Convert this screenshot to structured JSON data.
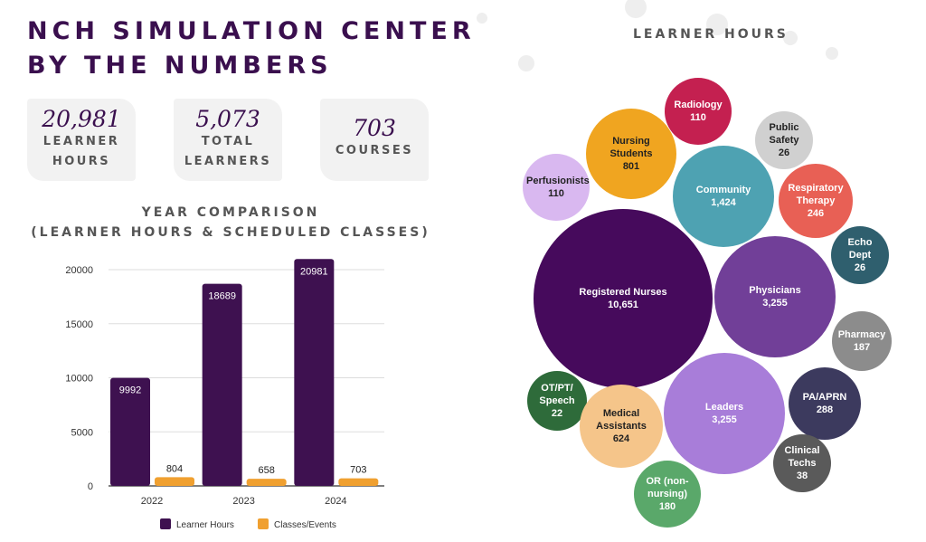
{
  "header": {
    "line1": "NCH SIMULATION CENTER",
    "line2": "BY THE NUMBERS"
  },
  "stats": [
    {
      "value": "20,981",
      "label1": "LEARNER",
      "label2": "HOURS"
    },
    {
      "value": "5,073",
      "label1": "TOTAL",
      "label2": "LEARNERS"
    },
    {
      "value": "703",
      "label1": "COURSES",
      "label2": ""
    }
  ],
  "chart_data": [
    {
      "type": "bar",
      "title": "YEAR COMPARISON",
      "subtitle": "(LEARNER HOURS & SCHEDULED CLASSES)",
      "categories": [
        "2022",
        "2023",
        "2024"
      ],
      "series": [
        {
          "name": "Learner Hours",
          "values": [
            9992,
            18689,
            20981
          ],
          "color": "#3e1150"
        },
        {
          "name": "Classes/Events",
          "values": [
            804,
            658,
            703
          ],
          "color": "#f0a030"
        }
      ],
      "ylim": [
        0,
        20000
      ],
      "yticks": [
        "0",
        "5000",
        "10000",
        "15000",
        "20000"
      ],
      "grid": true,
      "legend": "bottom"
    },
    {
      "type": "bubble",
      "title": "LEARNER HOURS",
      "items": [
        {
          "label": "Radiology",
          "value": "110",
          "color": "#c42050"
        },
        {
          "label": "Public Safety",
          "value": "26",
          "color": "#d0d0d0"
        },
        {
          "label": "Nursing Students",
          "value": "801",
          "color": "#f0a520"
        },
        {
          "label": "Perfusionists",
          "value": "110",
          "color": "#d9b8f0"
        },
        {
          "label": "Community",
          "value": "1,424",
          "color": "#4ea2b2"
        },
        {
          "label": "Respiratory Therapy",
          "value": "246",
          "color": "#e86055"
        },
        {
          "label": "Echo Dept",
          "value": "26",
          "color": "#2f5f6e"
        },
        {
          "label": "Registered Nurses",
          "value": "10,651",
          "color": "#460a5c"
        },
        {
          "label": "Physicians",
          "value": "3,255",
          "color": "#713f98"
        },
        {
          "label": "Pharmacy",
          "value": "187",
          "color": "#8c8c8c"
        },
        {
          "label": "Leaders",
          "value": "3,255",
          "color": "#a87dd9"
        },
        {
          "label": "PA/APRN",
          "value": "288",
          "color": "#3c3a5e"
        },
        {
          "label": "OT/PT/ Speech",
          "value": "22",
          "color": "#2e6b3a"
        },
        {
          "label": "Medical Assistants",
          "value": "624",
          "color": "#f5c58a"
        },
        {
          "label": "Clinical Techs",
          "value": "38",
          "color": "#5a5a5a"
        },
        {
          "label": "OR (non-nursing)",
          "value": "180",
          "color": "#5aa86a"
        }
      ]
    }
  ]
}
